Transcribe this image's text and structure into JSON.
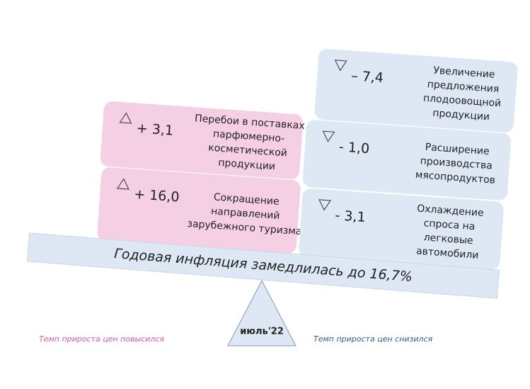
{
  "increased": [
    {
      "value": "+ 3,1",
      "lines": [
        "Перебои в поставках",
        "парфюмерно-",
        "косметической",
        "продукции"
      ]
    },
    {
      "value": "+ 16,0",
      "lines": [
        "Сокращение",
        "направлений",
        "зарубежного туризма"
      ]
    }
  ],
  "decreased": [
    {
      "value": "– 7,4",
      "lines": [
        "Увеличение",
        "предложения",
        "плодоовощной",
        "продукции"
      ]
    },
    {
      "value": "- 1,0",
      "lines": [
        "Расширение",
        "производства",
        "мясопродуктов"
      ]
    },
    {
      "value": "- 3,1",
      "lines": [
        "Охлаждение",
        "спроса на",
        "легковые",
        "автомобили"
      ]
    }
  ],
  "beam": "Годовая инфляция замедлилась до 16,7%",
  "fulcrum": "июль'22",
  "footer_left": "Темп прироста цен повысился",
  "footer_right": "Темп прироста цен снизился"
}
